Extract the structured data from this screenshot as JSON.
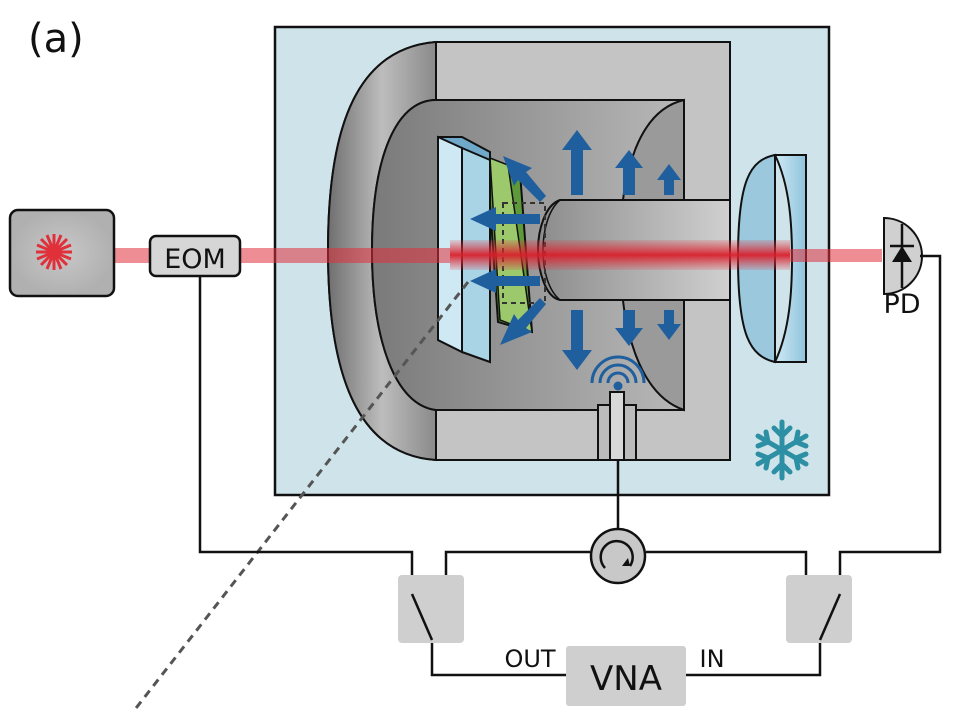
{
  "figure": {
    "panel_label": "(a)",
    "labels": {
      "eom": "EOM",
      "pd": "PD",
      "vna": "VNA",
      "out": "OUT",
      "in": "IN"
    },
    "icons": [
      "laser-icon",
      "snowflake-icon",
      "antenna-icon",
      "circulator-icon",
      "photodiode-icon",
      "switch-icon"
    ],
    "colors": {
      "cryostat_bg": "#cfe4ea",
      "laser_beam": "#e0303a",
      "arrows": "#1f5f9e",
      "snowflake": "#2c8fa3",
      "crystal": "#86b85a",
      "mirror": "#a9d4e6",
      "cavity": "#a0a0a0",
      "switch_box": "#cfcfcf"
    }
  }
}
